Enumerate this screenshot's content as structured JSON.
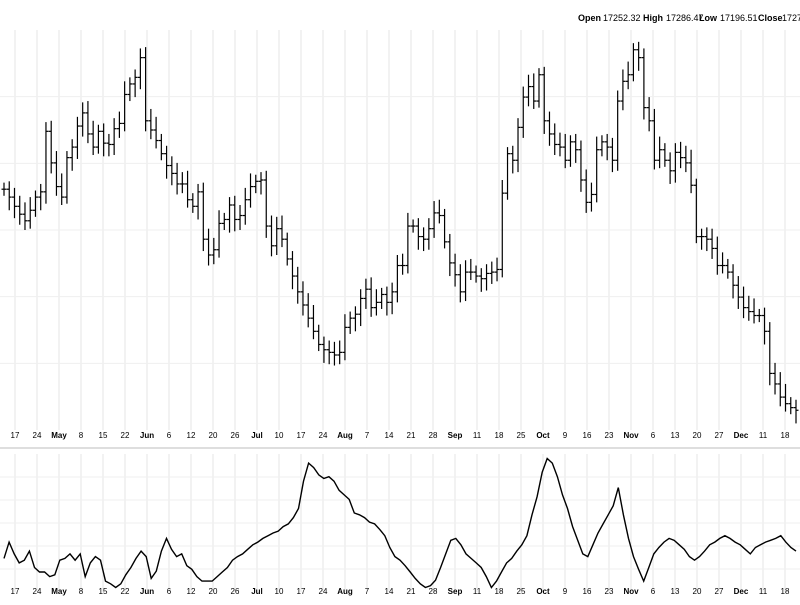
{
  "header": {
    "open_label": "Open",
    "open_value": "17252.32",
    "high_label": "High",
    "high_value": "17286.47",
    "low_label": "Low",
    "low_value": "17196.51",
    "close_label": "Close",
    "close_value": "1727"
  },
  "chart_data": [
    {
      "type": "ohlc",
      "title": "",
      "grid": true,
      "x_tick_labels": [
        "17",
        "24",
        "May",
        "8",
        "15",
        "22",
        "Jun",
        "6",
        "12",
        "20",
        "26",
        "Jul",
        "10",
        "17",
        "24",
        "Aug",
        "7",
        "14",
        "21",
        "28",
        "Sep",
        "11",
        "18",
        "25",
        "Oct",
        "9",
        "16",
        "23",
        "Nov",
        "6",
        "13",
        "20",
        "27",
        "Dec",
        "11",
        "18"
      ],
      "month_labels": [
        "May",
        "Jun",
        "Jul",
        "Aug",
        "Sep",
        "Oct",
        "Nov",
        "Dec"
      ],
      "series": [
        {
          "close": [
            268,
            262,
            255,
            249,
            244,
            252,
            262,
            266,
            312,
            288,
            270,
            262,
            292,
            300,
            316,
            326,
            310,
            300,
            312,
            303,
            302,
            314,
            318,
            340,
            348,
            353,
            368,
            320,
            313,
            305,
            295,
            286,
            280,
            272,
            272,
            260,
            255,
            266,
            230,
            218,
            222,
            242,
            245,
            256,
            245,
            248,
            260,
            270,
            274,
            275,
            240,
            225,
            238,
            230,
            215,
            202,
            190,
            180,
            170,
            160,
            150,
            146,
            144,
            142,
            144,
            163,
            170,
            173,
            185,
            192,
            178,
            182,
            188,
            182,
            190,
            210,
            210,
            240,
            240,
            232,
            230,
            238,
            250,
            248,
            228,
            212,
            203,
            190,
            205,
            205,
            202,
            200,
            204,
            205,
            207,
            265,
            295,
            290,
            315,
            338,
            346,
            335,
            355,
            320,
            310,
            302,
            300,
            290,
            304,
            298,
            275,
            258,
            264,
            298,
            304,
            300,
            290,
            335,
            350,
            355,
            374,
            368,
            330,
            320,
            290,
            298,
            290,
            282,
            296,
            292,
            288,
            271,
            232,
            232,
            230,
            223,
            210,
            210,
            205,
            195,
            186,
            178,
            175,
            172,
            172,
            160,
            128,
            120,
            110,
            105,
            102,
            100
          ]
        }
      ]
    },
    {
      "type": "line",
      "title": "",
      "grid": true,
      "x_tick_labels": [
        "17",
        "24",
        "May",
        "8",
        "15",
        "22",
        "Jun",
        "6",
        "12",
        "20",
        "26",
        "Jul",
        "10",
        "17",
        "24",
        "Aug",
        "7",
        "14",
        "21",
        "28",
        "Sep",
        "11",
        "18",
        "25",
        "Oct",
        "9",
        "16",
        "23",
        "Nov",
        "6",
        "13",
        "20",
        "27",
        "Dec",
        "11",
        "18"
      ],
      "series": [
        {
          "values": [
            40,
            58,
            45,
            35,
            38,
            48,
            30,
            25,
            25,
            20,
            22,
            38,
            40,
            45,
            38,
            45,
            20,
            35,
            42,
            38,
            15,
            12,
            8,
            12,
            22,
            30,
            40,
            48,
            42,
            18,
            26,
            48,
            62,
            50,
            42,
            45,
            32,
            28,
            20,
            15,
            15,
            15,
            20,
            25,
            30,
            38,
            42,
            45,
            50,
            55,
            58,
            62,
            65,
            68,
            70,
            75,
            78,
            85,
            95,
            125,
            145,
            140,
            132,
            128,
            130,
            125,
            115,
            110,
            105,
            90,
            88,
            85,
            80,
            78,
            72,
            65,
            52,
            42,
            38,
            32,
            25,
            18,
            12,
            8,
            10,
            16,
            30,
            45,
            60,
            62,
            55,
            45,
            40,
            35,
            30,
            20,
            8,
            15,
            25,
            35,
            40,
            48,
            55,
            65,
            88,
            108,
            135,
            150,
            145,
            130,
            110,
            95,
            75,
            60,
            45,
            42,
            55,
            68,
            78,
            88,
            98,
            118,
            88,
            62,
            42,
            28,
            15,
            30,
            45,
            52,
            58,
            62,
            60,
            55,
            50,
            42,
            38,
            42,
            48,
            55,
            58,
            62,
            65,
            62,
            58,
            55,
            50,
            45,
            52,
            55,
            58,
            60,
            62,
            65,
            58,
            52,
            48
          ]
        }
      ]
    }
  ]
}
